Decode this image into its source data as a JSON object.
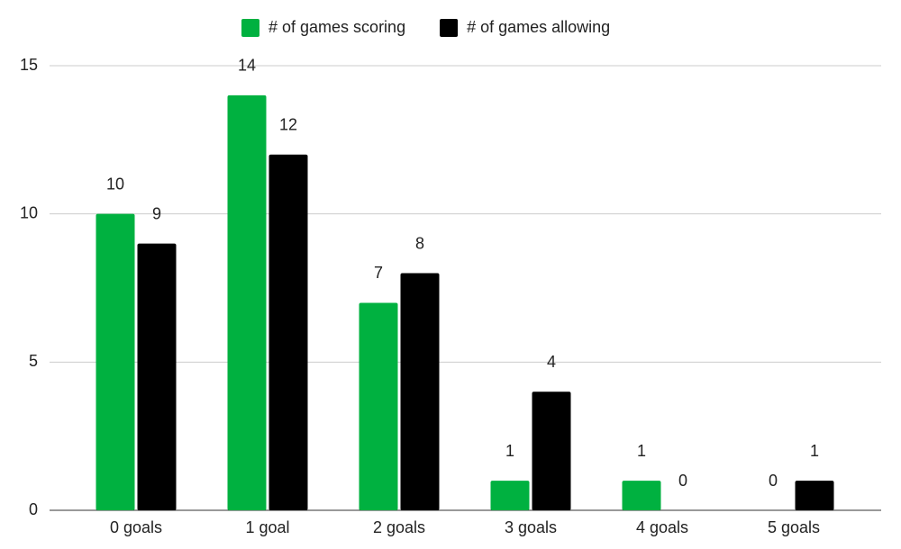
{
  "chart_data": {
    "type": "bar",
    "categories": [
      "0 goals",
      "1 goal",
      "2 goals",
      "3 goals",
      "4 goals",
      "5 goals"
    ],
    "series": [
      {
        "name": "# of games scoring",
        "color": "#00b140",
        "values": [
          10,
          14,
          7,
          1,
          1,
          0
        ]
      },
      {
        "name": "# of games allowing",
        "color": "#000000",
        "values": [
          9,
          12,
          8,
          4,
          0,
          1
        ]
      }
    ],
    "ylim": [
      0,
      15
    ],
    "yticks": [
      0,
      5,
      10,
      15
    ],
    "grid": true,
    "legend": "top",
    "data_labels": true
  }
}
